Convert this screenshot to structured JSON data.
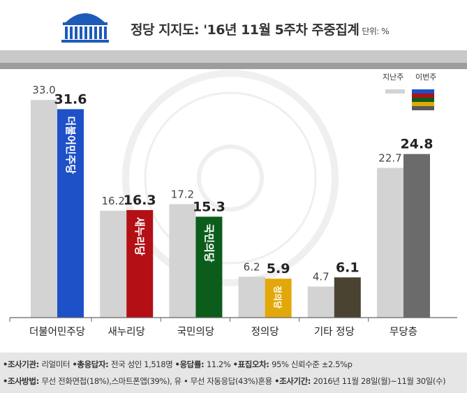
{
  "header": {
    "title": "정당 지지도: '16년 11월 5주차 주중집계",
    "unit": "단위: %"
  },
  "legend": {
    "prev": "지난주",
    "curr": "이번주",
    "prev_color": "#d3d3d3",
    "curr_colors": [
      "#1e50c8",
      "#b30f15",
      "#0c5d1c",
      "#e2a809",
      "#5a5a5a"
    ]
  },
  "chart_data": {
    "type": "bar",
    "categories": [
      "더불어민주당",
      "새누리당",
      "국민의당",
      "정의당",
      "기타 정당",
      "무당층"
    ],
    "series": [
      {
        "name": "지난주",
        "values": [
          33.0,
          16.2,
          17.2,
          6.2,
          4.7,
          22.7
        ],
        "labels": [
          "33.0",
          "16.2",
          "17.2",
          "6.2",
          "4.7",
          "22.7"
        ],
        "color": "#d3d3d3"
      },
      {
        "name": "이번주",
        "values": [
          31.6,
          16.3,
          15.3,
          5.9,
          6.1,
          24.8
        ],
        "labels": [
          "31.6",
          "16.3",
          "15.3",
          "5.9",
          "6.1",
          "24.8"
        ],
        "colors": [
          "#1e50c8",
          "#b30f15",
          "#0c5d1c",
          "#e2a809",
          "#4a4331",
          "#6b6b6b"
        ]
      }
    ],
    "bar_text": [
      "더불어민주당",
      "새누리당",
      "국민의당",
      "정의당",
      "",
      ""
    ],
    "ylim": [
      0,
      35
    ],
    "grid": false
  },
  "footer": {
    "line1": [
      {
        "label": "•조사기관: ",
        "value": "리얼미터 "
      },
      {
        "label": "•총응답자: ",
        "value": "전국 성인 1,518명 "
      },
      {
        "label": "•응답률: ",
        "value": "11.2% "
      },
      {
        "label": "•표집오차: ",
        "value": "95% 신뢰수준 ±2.5%p"
      }
    ],
    "line2": [
      {
        "label": "•조사방법: ",
        "value": "무선 전화면접(18%),스마트폰앱(39%), 유 • 무선 자동응답(43%)혼용 "
      },
      {
        "label": "•조사기간: ",
        "value": "2016년 11월 28일(월)~11월 30일(수)"
      }
    ]
  }
}
